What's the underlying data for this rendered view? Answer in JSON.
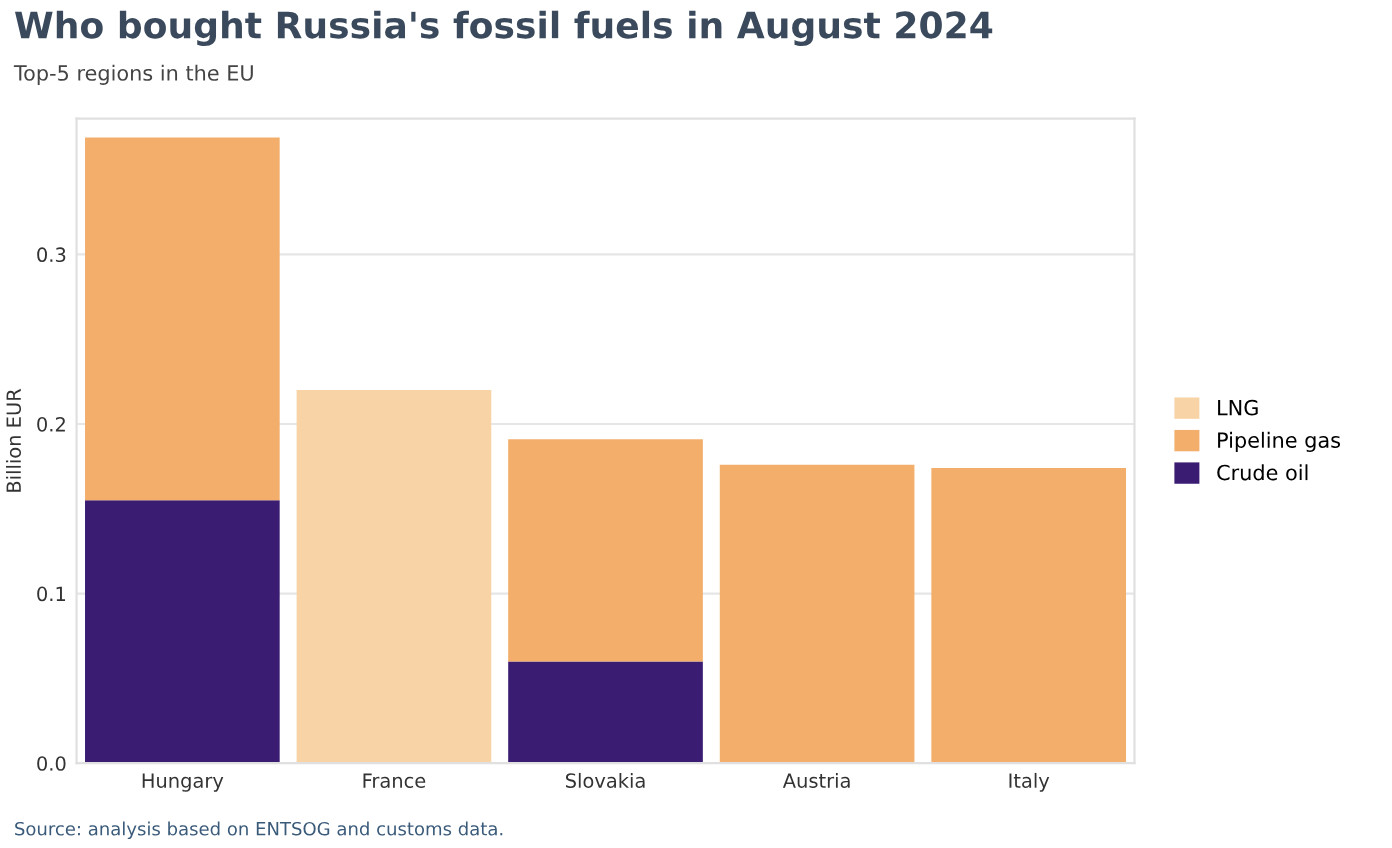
{
  "chart_data": {
    "type": "bar",
    "stacked": true,
    "title": "Who bought Russia's fossil fuels in August 2024",
    "subtitle": "Top-5 regions in the EU",
    "ylabel": "Billion EUR",
    "categories": [
      "Hungary",
      "France",
      "Slovakia",
      "Austria",
      "Italy"
    ],
    "series": [
      {
        "name": "Crude oil",
        "color": "#3b1c73",
        "values": [
          0.155,
          null,
          0.06,
          null,
          null
        ]
      },
      {
        "name": "Pipeline gas",
        "color": "#f3ae6b",
        "values": [
          0.214,
          null,
          0.131,
          0.176,
          0.174
        ]
      },
      {
        "name": "LNG",
        "color": "#f8d3a6",
        "values": [
          null,
          0.22,
          null,
          null,
          null
        ]
      }
    ],
    "ylim": [
      0,
      0.38
    ],
    "yticks": [
      {
        "value": 0,
        "label": "0.0"
      },
      0.1,
      0.2,
      0.3
    ],
    "grid": "y",
    "legend": "right",
    "annotations": [
      "Source: analysis based on ENTSOG and customs data."
    ]
  }
}
